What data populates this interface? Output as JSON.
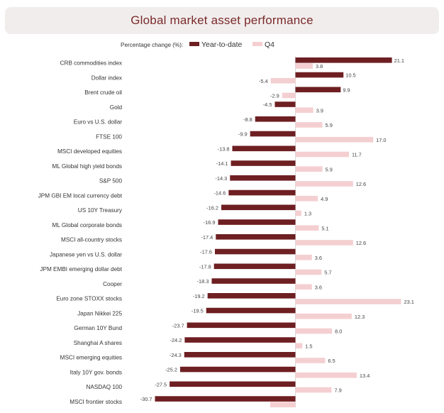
{
  "title": "Global market asset performance",
  "colors": {
    "ytd": "#6e1f22",
    "q4": "#f4cfd1",
    "title": "#7a2a2a",
    "title_bg": "#f2eded"
  },
  "chart_data": {
    "type": "bar",
    "orientation": "horizontal",
    "title": "Global market asset performance",
    "legend_title": "Percentage change (%):",
    "legend_position": "top",
    "grid": false,
    "categories": [
      "CRB commodities index",
      "Dollar index",
      "Brent crude oil",
      "Gold",
      "Euro vs U.S. dollar",
      "FTSE 100",
      "MSCI developed equities",
      "ML Global high yield bonds",
      "S&P 500",
      "JPM GBI EM local currency debt",
      "US 10Y Treasury",
      "ML Global corporate bonds",
      "MSCI all-country stocks",
      "Japanese yen vs U.S. dollar",
      "JPM EMBI emerging dollar debt",
      "Cooper",
      "Euro zone STOXX stocks",
      "Japan Nikkei 225",
      "German 10Y Bund",
      "Shanghai A shares",
      "MSCI emerging equities",
      "Italy 10Y gov. bonds",
      "NASDAQ 100",
      "MSCI frontier stocks"
    ],
    "series": [
      {
        "name": "Year-to-date",
        "values": [
          21.1,
          10.5,
          9.9,
          -4.5,
          -8.8,
          -9.9,
          -13.8,
          -14.1,
          -14.3,
          -14.6,
          -16.2,
          -16.9,
          -17.4,
          -17.6,
          -17.8,
          -18.3,
          -19.2,
          -19.5,
          -23.7,
          -24.2,
          -24.3,
          -25.2,
          -27.5,
          -30.7
        ]
      },
      {
        "name": "Q4",
        "values": [
          3.8,
          -5.4,
          -2.9,
          3.9,
          5.9,
          17.0,
          11.7,
          5.9,
          12.6,
          4.9,
          1.3,
          5.1,
          12.6,
          3.6,
          5.7,
          3.6,
          23.1,
          12.3,
          8.0,
          1.5,
          6.5,
          13.4,
          7.9,
          -5.5
        ]
      }
    ],
    "value_labels": {
      "ytd": [
        "21.1",
        "10.5",
        "9.9",
        "-4.5",
        "-8.8",
        "-9.9",
        "-13.8",
        "-14.1",
        "-14.3",
        "-14.6",
        "-16.2",
        "-16.9",
        "-17.4",
        "-17.6",
        "-17.8",
        "-18.3",
        "-19.2",
        "-19.5",
        "-23.7",
        "-24.2",
        "-24.3",
        "-25.2",
        "-27.5",
        "-30.7"
      ],
      "q4": [
        "3.8",
        "-5.4",
        "-2.9",
        "3.9",
        "5.9",
        "17.0",
        "11.7",
        "5.9",
        "12.6",
        "4.9",
        "1.3",
        "5.1",
        "12.6",
        "3.6",
        "5.7",
        "3.6",
        "23.1",
        "12.3",
        "8.0",
        "1.5",
        "6.5",
        "13.4",
        "7.9",
        ""
      ]
    },
    "xlim": [
      -31,
      25
    ]
  }
}
